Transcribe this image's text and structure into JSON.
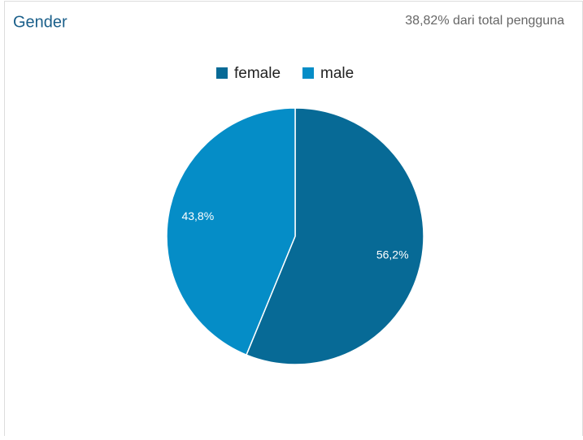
{
  "chart_data": {
    "type": "pie",
    "title": "Gender",
    "subtitle": "38,82% dari total pengguna",
    "categories": [
      "female",
      "male"
    ],
    "values": [
      56.2,
      43.8
    ],
    "value_labels": [
      "56,2%",
      "43,8%"
    ],
    "colors": [
      "#076a96",
      "#058dc7"
    ],
    "legend": "top"
  }
}
